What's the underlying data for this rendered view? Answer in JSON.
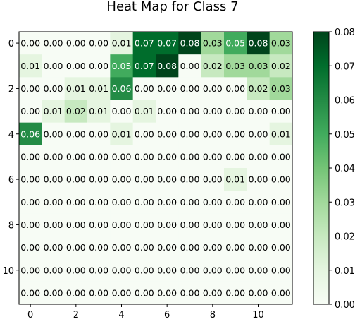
{
  "chart_data": {
    "type": "heatmap",
    "title": "Heat Map for Class 7",
    "colormap": "Greens",
    "rows": 12,
    "cols": 12,
    "x_ticks": [
      0,
      2,
      4,
      6,
      8,
      10
    ],
    "y_ticks": [
      0,
      2,
      4,
      6,
      8,
      10
    ],
    "colorbar": {
      "min": 0.0,
      "max": 0.08,
      "ticks": [
        "0.00",
        "0.01",
        "0.02",
        "0.03",
        "0.04",
        "0.05",
        "0.06",
        "0.07",
        "0.08"
      ]
    },
    "values": [
      [
        0.0,
        0.0,
        0.0,
        0.0,
        0.01,
        0.07,
        0.07,
        0.08,
        0.03,
        0.05,
        0.08,
        0.03
      ],
      [
        0.01,
        0.0,
        0.0,
        0.0,
        0.05,
        0.07,
        0.08,
        0.0,
        0.02,
        0.03,
        0.03,
        0.02
      ],
      [
        0.0,
        0.0,
        0.01,
        0.01,
        0.06,
        0.0,
        0.0,
        0.0,
        0.0,
        0.0,
        0.02,
        0.03
      ],
      [
        0.0,
        0.01,
        0.02,
        0.01,
        0.0,
        0.01,
        0.0,
        0.0,
        0.0,
        0.0,
        0.0,
        0.0
      ],
      [
        0.06,
        0.0,
        0.0,
        0.0,
        0.01,
        0.0,
        0.0,
        0.0,
        0.0,
        0.0,
        0.0,
        0.01
      ],
      [
        0.0,
        0.0,
        0.0,
        0.0,
        0.0,
        0.0,
        0.0,
        0.0,
        0.0,
        0.0,
        0.0,
        0.0
      ],
      [
        0.0,
        0.0,
        0.0,
        0.0,
        0.0,
        0.0,
        0.0,
        0.0,
        0.0,
        0.01,
        0.0,
        0.0
      ],
      [
        0.0,
        0.0,
        0.0,
        0.0,
        0.0,
        0.0,
        0.0,
        0.0,
        0.0,
        0.0,
        0.0,
        0.0
      ],
      [
        0.0,
        0.0,
        0.0,
        0.0,
        0.0,
        0.0,
        0.0,
        0.0,
        0.0,
        0.0,
        0.0,
        0.0
      ],
      [
        0.0,
        0.0,
        0.0,
        0.0,
        0.0,
        0.0,
        0.0,
        0.0,
        0.0,
        0.0,
        0.0,
        0.0
      ],
      [
        0.0,
        0.0,
        0.0,
        0.0,
        0.0,
        0.0,
        0.0,
        0.0,
        0.0,
        0.0,
        0.0,
        0.0
      ],
      [
        0.0,
        0.0,
        0.0,
        0.0,
        0.0,
        0.0,
        0.0,
        0.0,
        0.0,
        0.0,
        0.0,
        0.0
      ]
    ]
  }
}
